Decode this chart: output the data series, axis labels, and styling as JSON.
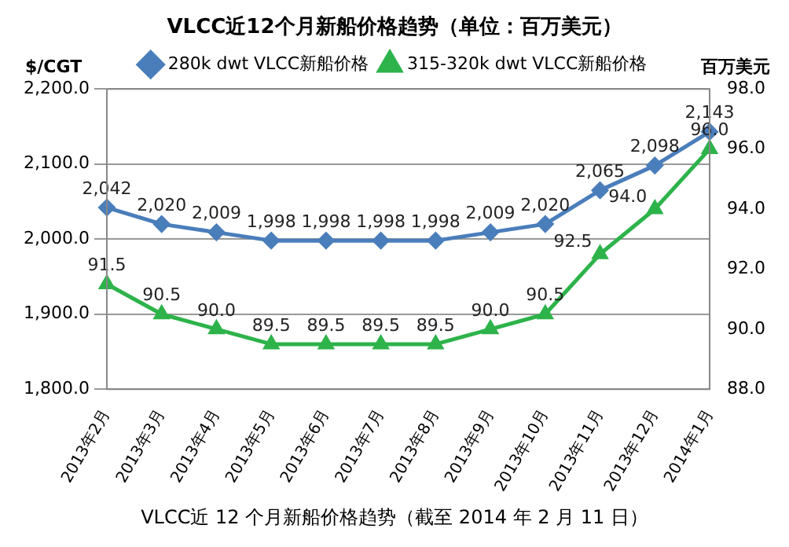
{
  "chart_data": {
    "type": "line",
    "title": "VLCC近12个月新船价格趋势（单位：百万美元）",
    "ylabel": "$/CGT",
    "y2label": "百万美元",
    "categories": [
      "2013年2月",
      "2013年3月",
      "2013年4月",
      "2013年5月",
      "2013年6月",
      "2013年7月",
      "2013年8月",
      "2013年9月",
      "2013年10月",
      "2013年11月",
      "2013年12月",
      "2014年1月"
    ],
    "series": [
      {
        "name": "280k dwt VLCC新船价格",
        "color": "#4a7ebb",
        "marker": "diamond",
        "values": [
          2042,
          2020,
          2009,
          1998,
          1998,
          1998,
          1998,
          2009,
          2020,
          2065,
          2098,
          2143
        ],
        "value_labels": [
          "2,042",
          "2,020",
          "2,009",
          "1,998",
          "1,998",
          "1,998",
          "1,998",
          "2,009",
          "2,020",
          "2,065",
          "2,098",
          "2,143"
        ]
      },
      {
        "name": "315-320k dwt VLCC新船价格",
        "color": "#2db34a",
        "marker": "triangle",
        "axis": "y2",
        "values": [
          91.5,
          90.5,
          90.0,
          89.5,
          89.5,
          89.5,
          89.5,
          90.0,
          90.5,
          92.5,
          94.0,
          96.0
        ],
        "value_labels": [
          "91.5",
          "90.5",
          "90.0",
          "89.5",
          "89.5",
          "89.5",
          "89.5",
          "90.0",
          "90.5",
          "92.5",
          "94.0",
          "96.0"
        ]
      }
    ],
    "ylim": [
      1800,
      2200
    ],
    "yticks": [
      {
        "value": 1800,
        "label": "1,800.0"
      },
      {
        "value": 1900,
        "label": "1,900.0"
      },
      {
        "value": 2000,
        "label": "2,000.0"
      },
      {
        "value": 2100,
        "label": "2,100.0"
      },
      {
        "value": 2200,
        "label": "2,200.0"
      }
    ],
    "y2lim": [
      88,
      98
    ],
    "y2ticks": [
      {
        "value": 88,
        "label": "88.0"
      },
      {
        "value": 90,
        "label": "90.0"
      },
      {
        "value": 92,
        "label": "92.0"
      },
      {
        "value": 94,
        "label": "94.0"
      },
      {
        "value": 96,
        "label": "96.0"
      },
      {
        "value": 98,
        "label": "98.0"
      }
    ],
    "grid": "y",
    "legend": "top",
    "annotations": [
      "VLCC近 12 个月新船价格趋势（截至 2014 年 2 月 11 日）"
    ]
  }
}
